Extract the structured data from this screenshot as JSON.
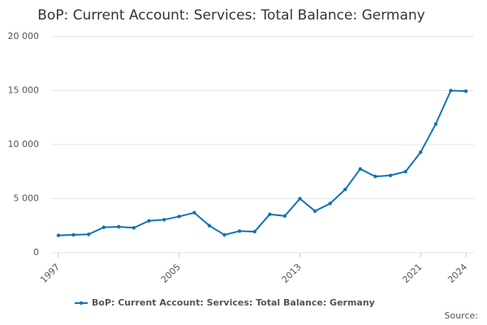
{
  "chart_data": {
    "type": "line",
    "title": "BoP: Current Account: Services: Total Balance: Germany",
    "source": "Source:",
    "x": [
      1997,
      1998,
      1999,
      2000,
      2001,
      2002,
      2003,
      2004,
      2005,
      2006,
      2007,
      2008,
      2009,
      2010,
      2011,
      2012,
      2013,
      2014,
      2015,
      2016,
      2017,
      2018,
      2019,
      2020,
      2021,
      2022,
      2023,
      2024
    ],
    "series": [
      {
        "name": "BoP: Current Account: Services: Total Balance: Germany",
        "color": "#1172b6",
        "values": [
          1600,
          1650,
          1700,
          2350,
          2400,
          2300,
          2950,
          3050,
          3350,
          3700,
          2500,
          1650,
          2000,
          1950,
          3550,
          3400,
          5000,
          3850,
          4550,
          5850,
          7750,
          7050,
          7150,
          7500,
          9300,
          11900,
          15000,
          14950
        ]
      }
    ],
    "xlim": [
      1997,
      2024
    ],
    "xticks": [
      1997,
      2005,
      2013,
      2021,
      2024
    ],
    "ylim": [
      0,
      20000
    ],
    "yticks": [
      0,
      {
        "value": 5000,
        "label": "5 000"
      },
      {
        "value": 10000,
        "label": "10 000"
      },
      {
        "value": 15000,
        "label": "15 000"
      },
      {
        "value": 20000,
        "label": "20 000"
      }
    ],
    "grid": true
  }
}
